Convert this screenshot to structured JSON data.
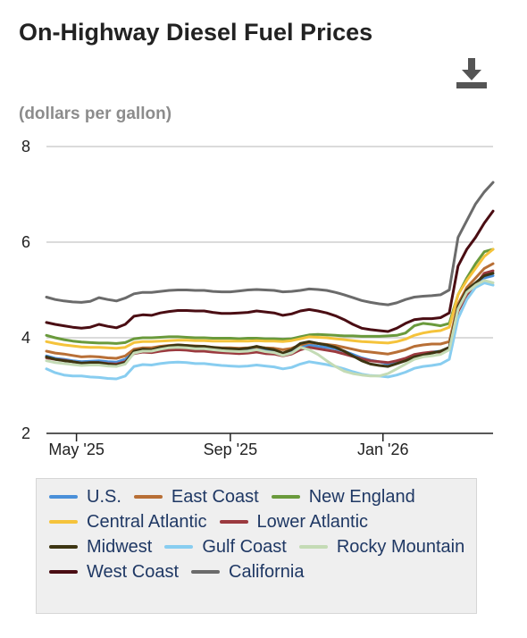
{
  "header": {
    "title": "On-Highway Diesel Fuel Prices",
    "subtitle": "(dollars per gallon)",
    "download_icon": "download-icon"
  },
  "chart_data": {
    "type": "line",
    "title": "On-Highway Diesel Fuel Prices",
    "ylabel": "(dollars per gallon)",
    "xlabel": "",
    "ylim": [
      2,
      8
    ],
    "y_ticks": [
      "2",
      "4",
      "6",
      "8"
    ],
    "x_range": [
      "2025-04-07",
      "2026-03-30"
    ],
    "x_ticks": [
      {
        "label": "May '25",
        "date": "2025-05-01"
      },
      {
        "label": "Sep '25",
        "date": "2025-09-01"
      },
      {
        "label": "Jan '26",
        "date": "2026-01-01"
      }
    ],
    "grid": true,
    "legend_placement": "bottom",
    "x_dates": [
      "2025-04-07",
      "2025-04-14",
      "2025-04-21",
      "2025-04-28",
      "2025-05-05",
      "2025-05-12",
      "2025-05-19",
      "2025-05-26",
      "2025-06-02",
      "2025-06-09",
      "2025-06-16",
      "2025-06-23",
      "2025-06-30",
      "2025-07-07",
      "2025-07-14",
      "2025-07-21",
      "2025-07-28",
      "2025-08-04",
      "2025-08-11",
      "2025-08-18",
      "2025-08-25",
      "2025-09-01",
      "2025-09-08",
      "2025-09-15",
      "2025-09-22",
      "2025-09-29",
      "2025-10-06",
      "2025-10-13",
      "2025-10-20",
      "2025-10-27",
      "2025-11-03",
      "2025-11-10",
      "2025-11-17",
      "2025-11-24",
      "2025-12-01",
      "2025-12-08",
      "2025-12-15",
      "2025-12-22",
      "2025-12-29",
      "2026-01-05",
      "2026-01-12",
      "2026-01-19",
      "2026-01-26",
      "2026-02-02",
      "2026-02-09",
      "2026-02-16",
      "2026-02-23",
      "2026-03-02",
      "2026-03-09",
      "2026-03-16",
      "2026-03-23",
      "2026-03-30"
    ],
    "series": [
      {
        "name": "U.S.",
        "color": "#4a90d9",
        "values": [
          3.62,
          3.57,
          3.55,
          3.52,
          3.5,
          3.51,
          3.52,
          3.5,
          3.49,
          3.55,
          3.7,
          3.74,
          3.73,
          3.78,
          3.8,
          3.81,
          3.8,
          3.78,
          3.78,
          3.76,
          3.75,
          3.75,
          3.73,
          3.74,
          3.76,
          3.73,
          3.72,
          3.67,
          3.71,
          3.8,
          3.85,
          3.82,
          3.8,
          3.77,
          3.72,
          3.65,
          3.58,
          3.53,
          3.5,
          3.45,
          3.5,
          3.55,
          3.62,
          3.66,
          3.7,
          3.72,
          3.8,
          4.6,
          4.95,
          5.1,
          5.25,
          5.3
        ]
      },
      {
        "name": "East Coast",
        "color": "#b86f36",
        "values": [
          3.72,
          3.68,
          3.66,
          3.63,
          3.6,
          3.61,
          3.6,
          3.58,
          3.57,
          3.62,
          3.76,
          3.79,
          3.79,
          3.82,
          3.84,
          3.85,
          3.84,
          3.83,
          3.82,
          3.8,
          3.79,
          3.79,
          3.78,
          3.79,
          3.81,
          3.79,
          3.78,
          3.75,
          3.78,
          3.85,
          3.9,
          3.88,
          3.86,
          3.84,
          3.8,
          3.76,
          3.72,
          3.7,
          3.68,
          3.66,
          3.7,
          3.75,
          3.82,
          3.85,
          3.87,
          3.87,
          3.92,
          4.7,
          5.05,
          5.25,
          5.45,
          5.55
        ]
      },
      {
        "name": "New England",
        "color": "#6a9a3c",
        "values": [
          4.05,
          4.0,
          3.96,
          3.93,
          3.91,
          3.9,
          3.89,
          3.89,
          3.88,
          3.9,
          3.98,
          4.0,
          4.0,
          4.01,
          4.02,
          4.02,
          4.01,
          4.0,
          4.0,
          3.99,
          3.99,
          3.99,
          3.98,
          3.99,
          3.99,
          3.98,
          3.98,
          3.97,
          3.98,
          4.02,
          4.06,
          4.07,
          4.06,
          4.05,
          4.04,
          4.04,
          4.03,
          4.03,
          4.03,
          4.04,
          4.05,
          4.1,
          4.25,
          4.3,
          4.28,
          4.25,
          4.3,
          4.9,
          5.25,
          5.55,
          5.8,
          5.85
        ]
      },
      {
        "name": "Central Atlantic",
        "color": "#f5c33b",
        "values": [
          3.92,
          3.88,
          3.85,
          3.83,
          3.81,
          3.8,
          3.8,
          3.79,
          3.78,
          3.8,
          3.9,
          3.92,
          3.92,
          3.93,
          3.94,
          3.95,
          3.95,
          3.94,
          3.94,
          3.93,
          3.93,
          3.93,
          3.93,
          3.93,
          3.94,
          3.93,
          3.93,
          3.92,
          3.94,
          3.98,
          4.02,
          4.01,
          4.0,
          3.98,
          3.96,
          3.94,
          3.92,
          3.91,
          3.9,
          3.89,
          3.92,
          3.97,
          4.05,
          4.1,
          4.13,
          4.15,
          4.22,
          4.9,
          5.2,
          5.45,
          5.7,
          5.85
        ]
      },
      {
        "name": "Lower Atlantic",
        "color": "#9b3a3f",
        "values": [
          3.58,
          3.55,
          3.53,
          3.5,
          3.47,
          3.48,
          3.48,
          3.46,
          3.45,
          3.5,
          3.67,
          3.7,
          3.69,
          3.72,
          3.74,
          3.75,
          3.74,
          3.72,
          3.72,
          3.7,
          3.69,
          3.68,
          3.67,
          3.68,
          3.7,
          3.67,
          3.66,
          3.62,
          3.66,
          3.75,
          3.8,
          3.77,
          3.74,
          3.71,
          3.66,
          3.61,
          3.56,
          3.52,
          3.5,
          3.48,
          3.52,
          3.57,
          3.65,
          3.68,
          3.7,
          3.7,
          3.75,
          4.55,
          4.9,
          5.1,
          5.35,
          5.4
        ]
      },
      {
        "name": "Midwest",
        "color": "#3d3512",
        "values": [
          3.6,
          3.55,
          3.52,
          3.5,
          3.47,
          3.48,
          3.48,
          3.45,
          3.43,
          3.48,
          3.72,
          3.76,
          3.75,
          3.8,
          3.83,
          3.85,
          3.84,
          3.82,
          3.82,
          3.8,
          3.78,
          3.77,
          3.76,
          3.78,
          3.82,
          3.78,
          3.75,
          3.68,
          3.75,
          3.88,
          3.92,
          3.88,
          3.85,
          3.8,
          3.72,
          3.62,
          3.52,
          3.45,
          3.42,
          3.4,
          3.46,
          3.52,
          3.6,
          3.64,
          3.68,
          3.72,
          3.8,
          4.65,
          5.0,
          5.15,
          5.3,
          5.35
        ]
      },
      {
        "name": "Gulf Coast",
        "color": "#88cdf0",
        "values": [
          3.35,
          3.27,
          3.22,
          3.2,
          3.2,
          3.18,
          3.17,
          3.15,
          3.14,
          3.2,
          3.4,
          3.44,
          3.43,
          3.46,
          3.48,
          3.49,
          3.48,
          3.46,
          3.46,
          3.44,
          3.42,
          3.41,
          3.4,
          3.41,
          3.43,
          3.41,
          3.39,
          3.35,
          3.38,
          3.45,
          3.5,
          3.47,
          3.44,
          3.4,
          3.35,
          3.29,
          3.24,
          3.21,
          3.2,
          3.18,
          3.22,
          3.28,
          3.36,
          3.4,
          3.42,
          3.45,
          3.55,
          4.4,
          4.8,
          5.05,
          5.15,
          5.1
        ]
      },
      {
        "name": "Rocky Mountain",
        "color": "#c4dbb5",
        "values": [
          3.52,
          3.48,
          3.46,
          3.44,
          3.42,
          3.43,
          3.43,
          3.41,
          3.4,
          3.45,
          3.68,
          3.72,
          3.72,
          3.76,
          3.79,
          3.8,
          3.79,
          3.77,
          3.77,
          3.75,
          3.73,
          3.72,
          3.71,
          3.72,
          3.75,
          3.71,
          3.69,
          3.63,
          3.68,
          3.8,
          3.75,
          3.65,
          3.52,
          3.4,
          3.3,
          3.25,
          3.22,
          3.2,
          3.2,
          3.25,
          3.35,
          3.45,
          3.55,
          3.6,
          3.62,
          3.65,
          3.75,
          4.6,
          4.95,
          5.1,
          5.2,
          5.15
        ]
      },
      {
        "name": "West Coast",
        "color": "#4a0d13",
        "values": [
          4.32,
          4.28,
          4.25,
          4.22,
          4.2,
          4.22,
          4.28,
          4.24,
          4.21,
          4.28,
          4.45,
          4.48,
          4.47,
          4.52,
          4.55,
          4.57,
          4.57,
          4.56,
          4.56,
          4.53,
          4.51,
          4.51,
          4.52,
          4.53,
          4.56,
          4.54,
          4.52,
          4.47,
          4.5,
          4.56,
          4.59,
          4.56,
          4.52,
          4.46,
          4.38,
          4.28,
          4.2,
          4.17,
          4.15,
          4.13,
          4.2,
          4.3,
          4.38,
          4.4,
          4.4,
          4.42,
          4.52,
          5.5,
          5.85,
          6.1,
          6.4,
          6.65
        ]
      },
      {
        "name": "California",
        "color": "#6b6b6b",
        "values": [
          4.85,
          4.8,
          4.77,
          4.75,
          4.74,
          4.76,
          4.84,
          4.8,
          4.77,
          4.83,
          4.92,
          4.95,
          4.95,
          4.97,
          4.99,
          5.0,
          5.0,
          4.99,
          4.99,
          4.97,
          4.96,
          4.96,
          4.98,
          5.0,
          5.01,
          5.0,
          4.99,
          4.96,
          4.97,
          4.99,
          5.02,
          5.01,
          4.99,
          4.95,
          4.9,
          4.84,
          4.78,
          4.74,
          4.71,
          4.69,
          4.73,
          4.8,
          4.85,
          4.87,
          4.88,
          4.9,
          5.0,
          6.1,
          6.45,
          6.8,
          7.05,
          7.25
        ]
      }
    ]
  }
}
